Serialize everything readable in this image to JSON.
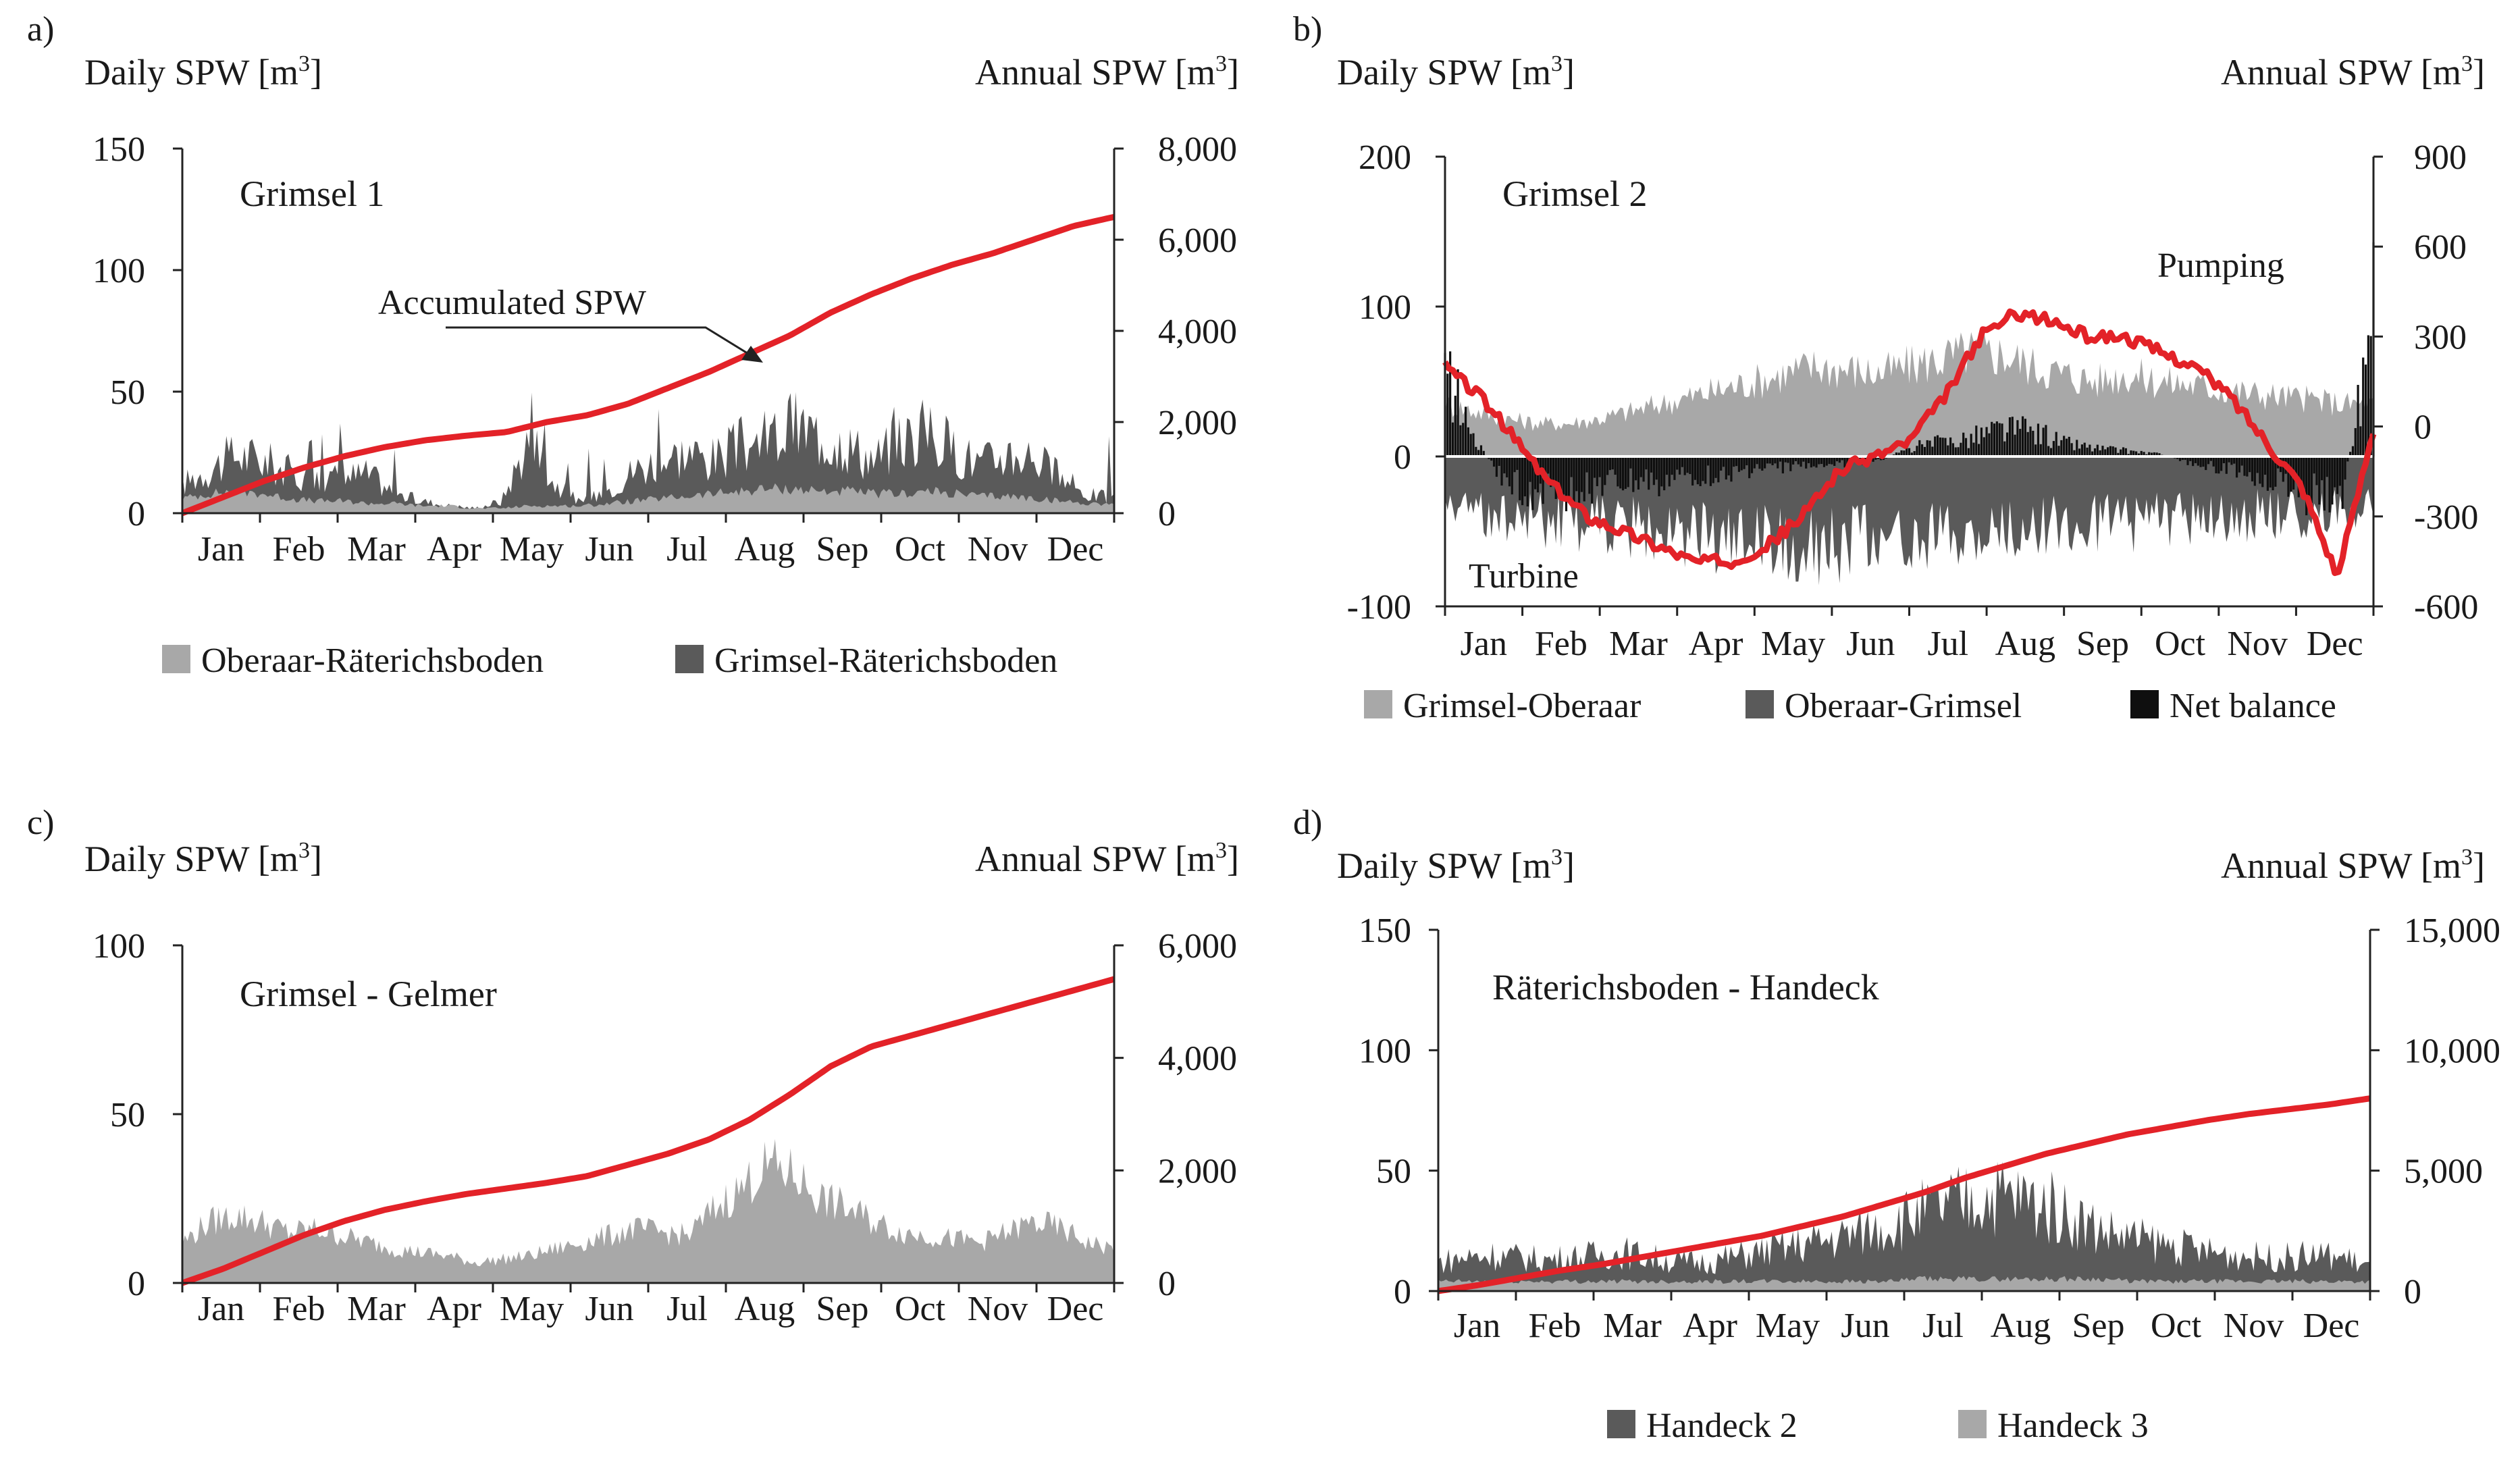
{
  "figure": {
    "months": [
      "Jan",
      "Feb",
      "Mar",
      "Apr",
      "May",
      "Jun",
      "Jul",
      "Aug",
      "Sep",
      "Oct",
      "Nov",
      "Dec"
    ]
  },
  "colors": {
    "red": "#e32228",
    "light": "#a8a8a8",
    "dark": "#5a5a5a",
    "black": "#0f0f0f"
  },
  "chart_data": [
    {
      "id": "a",
      "type": "area",
      "panel_label": "a)",
      "title": "Grimsel 1",
      "ylabel_left": "Daily SPW [m",
      "ylabel_left_sup": "3",
      "ylabel_left_close": "]",
      "ylabel_right": "Annual SPW [m",
      "ylabel_right_sup": "3",
      "ylabel_right_close": "]",
      "ylim_left": [
        0,
        150
      ],
      "yticks_left": [
        "0",
        "50",
        "100",
        "150"
      ],
      "ylim_right": [
        0,
        8000
      ],
      "yticks_right": [
        "0",
        "2,000",
        "4,000",
        "6,000",
        "8,000"
      ],
      "annotation": "Accumulated SPW",
      "legend": [
        "Oberaar-Räterichsboden",
        "Grimsel-Räterichsboden"
      ],
      "series": [
        {
          "name": "Grimsel-Räterichsboden",
          "color": "dark",
          "kind": "area",
          "values": [
            12,
            18,
            24,
            22,
            17,
            14,
            15,
            16,
            8,
            5,
            3,
            2,
            5,
            30,
            12,
            4,
            10,
            18,
            22,
            25,
            22,
            28,
            30,
            36,
            32,
            28,
            22,
            30,
            34,
            26,
            20,
            25,
            24,
            14,
            8,
            6
          ]
        },
        {
          "name": "Oberaar-Räterichsboden",
          "color": "light",
          "kind": "area",
          "values": [
            6,
            8,
            9,
            8,
            6,
            5,
            5,
            4,
            4,
            3,
            3,
            2,
            2,
            3,
            3,
            3,
            4,
            5,
            6,
            7,
            8,
            9,
            10,
            10,
            9,
            9,
            8,
            8,
            9,
            8,
            7,
            7,
            6,
            5,
            4,
            4
          ]
        },
        {
          "name": "Accumulated SPW",
          "color": "red",
          "kind": "line",
          "values": [
            0,
            350,
            700,
            1000,
            1250,
            1450,
            1600,
            1700,
            1780,
            2000,
            2150,
            2400,
            2750,
            3100,
            3500,
            3900,
            4400,
            4800,
            5150,
            5450,
            5700,
            6000,
            6300,
            6500
          ]
        }
      ]
    },
    {
      "id": "b",
      "type": "area",
      "panel_label": "b)",
      "title": "Grimsel 2",
      "ylabel_left": "Daily SPW [m",
      "ylabel_left_sup": "3",
      "ylabel_left_close": "]",
      "ylabel_right": "Annual SPW [m",
      "ylabel_right_sup": "3",
      "ylabel_right_close": "]",
      "ylim_left": [
        -100,
        200
      ],
      "yticks_left": [
        "-100",
        "0",
        "100",
        "200"
      ],
      "ylim_right": [
        -600,
        900
      ],
      "yticks_right": [
        "-600",
        "-300",
        "0",
        "300",
        "600",
        "900"
      ],
      "annotations": {
        "pumping": "Pumping",
        "turbine": "Turbine"
      },
      "legend": [
        "Grimsel-Oberaar",
        "Oberaar-Grimsel",
        "Net balance"
      ],
      "series": [
        {
          "name": "Grimsel-Oberaar",
          "color": "light",
          "kind": "area",
          "values": [
            35,
            30,
            25,
            22,
            22,
            25,
            30,
            35,
            40,
            45,
            50,
            55,
            60,
            58,
            55,
            60,
            65,
            70,
            68,
            60,
            55,
            50,
            55,
            50,
            48,
            45,
            42,
            40,
            38,
            35,
            35
          ]
        },
        {
          "name": "Oberaar-Grimsel",
          "color": "dark",
          "kind": "area",
          "values": [
            -30,
            -38,
            -40,
            -42,
            -45,
            -45,
            -48,
            -50,
            -52,
            -55,
            -58,
            -60,
            -60,
            -58,
            -55,
            -52,
            -55,
            -55,
            -50,
            -45,
            -45,
            -45,
            -45,
            -42,
            -42,
            -40,
            -40,
            -38,
            -38,
            -35,
            -30
          ]
        },
        {
          "name": "Net balance",
          "color": "black",
          "kind": "bars",
          "values": [
            60,
            10,
            -20,
            -25,
            -25,
            -22,
            -20,
            -18,
            -15,
            -12,
            -10,
            -8,
            -5,
            -5,
            -4,
            6,
            10,
            14,
            20,
            18,
            10,
            6,
            4,
            2,
            -4,
            -8,
            -12,
            -20,
            -28,
            -30,
            100
          ]
        },
        {
          "name": "Accumulated SPW",
          "color": "red",
          "kind": "line",
          "values": [
            200,
            100,
            -50,
            -200,
            -300,
            -350,
            -400,
            -450,
            -450,
            -400,
            -300,
            -150,
            -100,
            -50,
            100,
            300,
            380,
            350,
            300,
            300,
            250,
            200,
            100,
            -50,
            -200,
            -500,
            -10
          ]
        }
      ]
    },
    {
      "id": "c",
      "type": "area",
      "panel_label": "c)",
      "title": "Grimsel - Gelmer",
      "ylabel_left": "Daily SPW [m",
      "ylabel_left_sup": "3",
      "ylabel_left_close": "]",
      "ylabel_right": "Annual SPW [m",
      "ylabel_right_sup": "3",
      "ylabel_right_close": "]",
      "ylim_left": [
        0,
        100
      ],
      "yticks_left": [
        "0",
        "50",
        "100"
      ],
      "ylim_right": [
        0,
        6000
      ],
      "yticks_right": [
        "0",
        "2,000",
        "4,000",
        "6,000"
      ],
      "series": [
        {
          "name": "Grimsel-Gelmer",
          "color": "light",
          "kind": "area",
          "values": [
            12,
            18,
            20,
            18,
            15,
            16,
            14,
            12,
            10,
            9,
            8,
            6,
            7,
            8,
            10,
            12,
            14,
            16,
            15,
            14,
            22,
            28,
            35,
            32,
            25,
            22,
            18,
            15,
            14,
            13,
            12,
            15,
            18,
            16,
            12,
            10
          ]
        },
        {
          "name": "Accumulated SPW",
          "color": "red",
          "kind": "line",
          "values": [
            0,
            250,
            550,
            850,
            1100,
            1300,
            1450,
            1580,
            1680,
            1780,
            1900,
            2100,
            2300,
            2550,
            2900,
            3350,
            3850,
            4200,
            4400,
            4600,
            4800,
            5000,
            5200,
            5400
          ]
        }
      ]
    },
    {
      "id": "d",
      "type": "area",
      "panel_label": "d)",
      "title": "Räterichsboden - Handeck",
      "ylabel_left": "Daily SPW [m",
      "ylabel_left_sup": "3",
      "ylabel_left_close": "]",
      "ylabel_right": "Annual SPW [m",
      "ylabel_right_sup": "3",
      "ylabel_right_close": "]",
      "ylim_left": [
        0,
        150
      ],
      "yticks_left": [
        "0",
        "50",
        "100",
        "150"
      ],
      "ylim_right": [
        0,
        15000
      ],
      "yticks_right": [
        "0",
        "5,000",
        "10,000",
        "15,000"
      ],
      "legend": [
        "Handeck 2",
        "Handeck 3"
      ],
      "series": [
        {
          "name": "Handeck 2",
          "color": "dark",
          "kind": "area",
          "values": [
            12,
            14,
            15,
            14,
            13,
            14,
            15,
            16,
            14,
            12,
            12,
            14,
            16,
            18,
            20,
            22,
            25,
            28,
            32,
            35,
            38,
            40,
            38,
            35,
            30,
            25,
            22,
            20,
            18,
            16,
            15,
            14,
            14,
            15,
            14,
            10
          ]
        },
        {
          "name": "Handeck 3",
          "color": "light",
          "kind": "area",
          "values": [
            4,
            4,
            4,
            4,
            4,
            4,
            4,
            4,
            4,
            4,
            4,
            4,
            4,
            4,
            4,
            4,
            4,
            4,
            5,
            5,
            5,
            5,
            5,
            5,
            5,
            5,
            4,
            4,
            4,
            4,
            4,
            4,
            4,
            4,
            4,
            4
          ]
        },
        {
          "name": "Accumulated SPW",
          "color": "red",
          "kind": "line",
          "values": [
            0,
            250,
            550,
            850,
            1100,
            1400,
            1700,
            2000,
            2300,
            2700,
            3100,
            3600,
            4100,
            4700,
            5200,
            5700,
            6100,
            6500,
            6800,
            7100,
            7350,
            7550,
            7750,
            8000
          ]
        }
      ]
    }
  ]
}
